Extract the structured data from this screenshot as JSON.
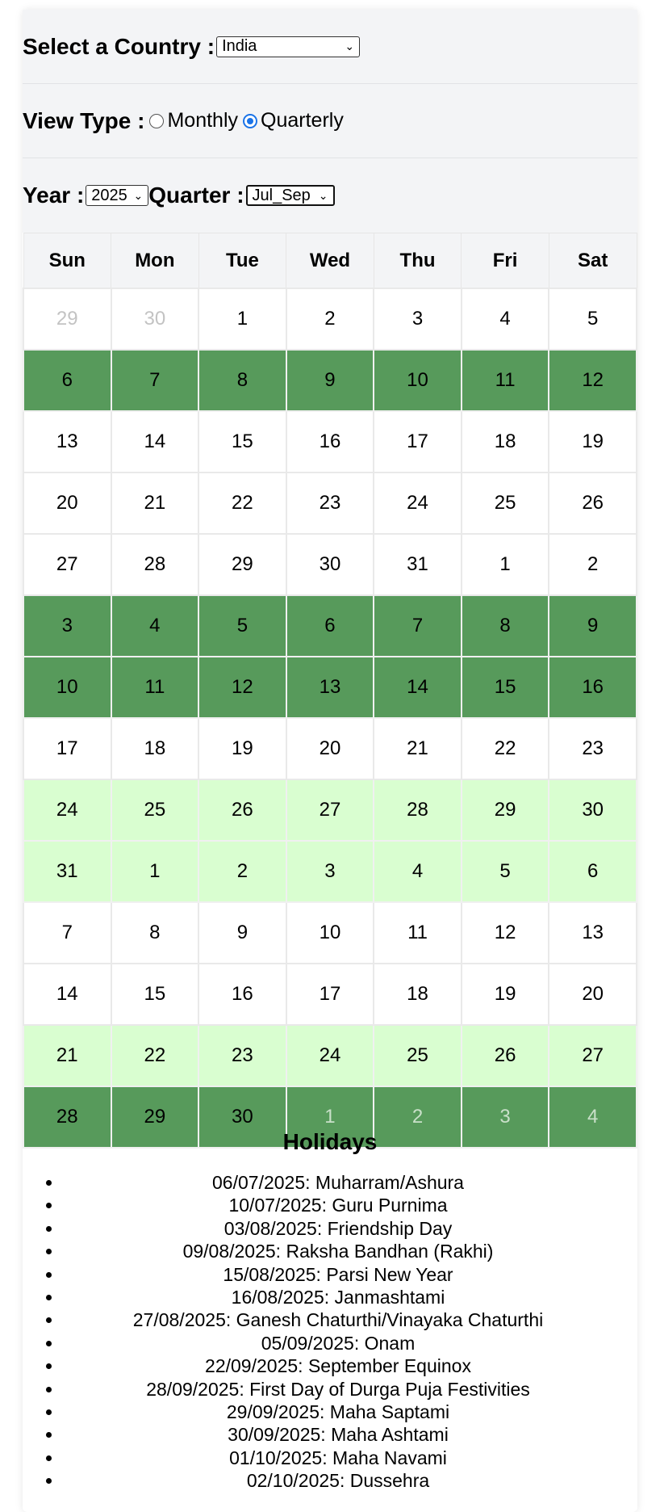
{
  "country": {
    "label": "Select a Country :",
    "selected": "India"
  },
  "view": {
    "label": "View Type :",
    "monthly": "Monthly",
    "quarterly": "Quarterly",
    "selected": "Quarterly"
  },
  "period": {
    "year_label": "Year :",
    "year": "2025",
    "quarter_label": "Quarter :",
    "quarter": "Jul_Sep"
  },
  "calendar": {
    "weekdays": [
      "Sun",
      "Mon",
      "Tue",
      "Wed",
      "Thu",
      "Fri",
      "Sat"
    ],
    "weeks": [
      {
        "style": "plain",
        "days": [
          "29",
          "30",
          "1",
          "2",
          "3",
          "4",
          "5"
        ],
        "other": [
          true,
          true,
          false,
          false,
          false,
          false,
          false
        ]
      },
      {
        "style": "dark",
        "days": [
          "6",
          "7",
          "8",
          "9",
          "10",
          "11",
          "12"
        ],
        "other": [
          false,
          false,
          false,
          false,
          false,
          false,
          false
        ]
      },
      {
        "style": "plain",
        "days": [
          "13",
          "14",
          "15",
          "16",
          "17",
          "18",
          "19"
        ],
        "other": [
          false,
          false,
          false,
          false,
          false,
          false,
          false
        ]
      },
      {
        "style": "plain",
        "days": [
          "20",
          "21",
          "22",
          "23",
          "24",
          "25",
          "26"
        ],
        "other": [
          false,
          false,
          false,
          false,
          false,
          false,
          false
        ]
      },
      {
        "style": "plain",
        "days": [
          "27",
          "28",
          "29",
          "30",
          "31",
          "1",
          "2"
        ],
        "other": [
          false,
          false,
          false,
          false,
          false,
          false,
          false
        ]
      },
      {
        "style": "dark",
        "days": [
          "3",
          "4",
          "5",
          "6",
          "7",
          "8",
          "9"
        ],
        "other": [
          false,
          false,
          false,
          false,
          false,
          false,
          false
        ]
      },
      {
        "style": "dark",
        "days": [
          "10",
          "11",
          "12",
          "13",
          "14",
          "15",
          "16"
        ],
        "other": [
          false,
          false,
          false,
          false,
          false,
          false,
          false
        ]
      },
      {
        "style": "plain",
        "days": [
          "17",
          "18",
          "19",
          "20",
          "21",
          "22",
          "23"
        ],
        "other": [
          false,
          false,
          false,
          false,
          false,
          false,
          false
        ]
      },
      {
        "style": "light",
        "days": [
          "24",
          "25",
          "26",
          "27",
          "28",
          "29",
          "30"
        ],
        "other": [
          false,
          false,
          false,
          false,
          false,
          false,
          false
        ]
      },
      {
        "style": "light",
        "days": [
          "31",
          "1",
          "2",
          "3",
          "4",
          "5",
          "6"
        ],
        "other": [
          false,
          false,
          false,
          false,
          false,
          false,
          false
        ]
      },
      {
        "style": "plain",
        "days": [
          "7",
          "8",
          "9",
          "10",
          "11",
          "12",
          "13"
        ],
        "other": [
          false,
          false,
          false,
          false,
          false,
          false,
          false
        ]
      },
      {
        "style": "plain",
        "days": [
          "14",
          "15",
          "16",
          "17",
          "18",
          "19",
          "20"
        ],
        "other": [
          false,
          false,
          false,
          false,
          false,
          false,
          false
        ]
      },
      {
        "style": "light",
        "days": [
          "21",
          "22",
          "23",
          "24",
          "25",
          "26",
          "27"
        ],
        "other": [
          false,
          false,
          false,
          false,
          false,
          false,
          false
        ]
      },
      {
        "style": "dark",
        "days": [
          "28",
          "29",
          "30",
          "1",
          "2",
          "3",
          "4"
        ],
        "other": [
          false,
          false,
          false,
          true,
          true,
          true,
          true
        ]
      }
    ]
  },
  "colors": {
    "dark_week": "#579a5b",
    "light_week": "#d9fed0",
    "panel": "#f3f4f6",
    "radio_selected": "#1a73e8"
  },
  "holidays": {
    "title": "Holidays",
    "items": [
      "06/07/2025: Muharram/Ashura",
      "10/07/2025: Guru Purnima",
      "03/08/2025: Friendship Day",
      "09/08/2025: Raksha Bandhan (Rakhi)",
      "15/08/2025: Parsi New Year",
      "16/08/2025: Janmashtami",
      "27/08/2025: Ganesh Chaturthi/Vinayaka Chaturthi",
      "05/09/2025: Onam",
      "22/09/2025: September Equinox",
      "28/09/2025: First Day of Durga Puja Festivities",
      "29/09/2025: Maha Saptami",
      "30/09/2025: Maha Ashtami",
      "01/10/2025: Maha Navami",
      "02/10/2025: Dussehra"
    ]
  }
}
